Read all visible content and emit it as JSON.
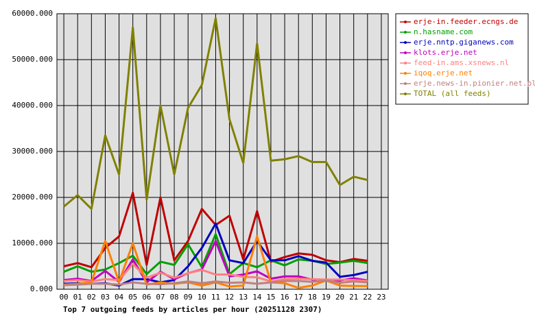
{
  "chart_data": {
    "type": "line",
    "title": "Top 7 outgoing feeds by articles per hour (20251128 2307)",
    "categories": [
      "00",
      "01",
      "02",
      "03",
      "04",
      "05",
      "06",
      "07",
      "08",
      "09",
      "10",
      "11",
      "12",
      "13",
      "14",
      "15",
      "16",
      "17",
      "18",
      "19",
      "20",
      "21",
      "22",
      "23"
    ],
    "ylim": [
      0,
      60000
    ],
    "yticks": [
      {
        "value": 0,
        "label": "0.000"
      },
      {
        "value": 10000,
        "label": "10000.000"
      },
      {
        "value": 20000,
        "label": "20000.000"
      },
      {
        "value": 30000,
        "label": "30000.000"
      },
      {
        "value": 40000,
        "label": "40000.000"
      },
      {
        "value": 50000,
        "label": "50000.000"
      },
      {
        "value": 60000,
        "label": "60000.000"
      }
    ],
    "grid": true,
    "legend": "right",
    "series": [
      {
        "name": "erje-in.feeder.ecngs.de",
        "color": "#c00000",
        "values": [
          5000,
          5700,
          4800,
          9000,
          11500,
          21000,
          5300,
          20000,
          6300,
          10500,
          17500,
          14000,
          16000,
          6500,
          17000,
          6000,
          7000,
          7800,
          7500,
          6300,
          5900,
          6600,
          6200,
          null
        ]
      },
      {
        "name": "n.hasname.com",
        "color": "#00a000",
        "values": [
          3800,
          5000,
          3800,
          4300,
          5700,
          7300,
          3300,
          6000,
          5300,
          9800,
          4800,
          12000,
          3300,
          5700,
          4800,
          6300,
          5200,
          6500,
          6200,
          5500,
          5800,
          6200,
          5700,
          null
        ]
      },
      {
        "name": "erje.nntp.giganews.com",
        "color": "#0000c0",
        "values": [
          1200,
          1300,
          1200,
          1300,
          800,
          2200,
          2200,
          1500,
          2000,
          5000,
          9000,
          14300,
          6300,
          5700,
          10500,
          6300,
          6300,
          7200,
          6200,
          5800,
          2700,
          3100,
          3800,
          null
        ]
      },
      {
        "name": "klots.erje.net",
        "color": "#c000c0",
        "values": [
          2000,
          2300,
          1800,
          4000,
          1600,
          6500,
          1500,
          3800,
          2200,
          3500,
          4300,
          10500,
          2800,
          3200,
          3900,
          2300,
          2800,
          2800,
          2100,
          1900,
          1900,
          2400,
          1900,
          null
        ]
      },
      {
        "name": "feed-in.ams.xsnews.nl",
        "color": "#ff8080",
        "values": [
          1800,
          2000,
          1700,
          2200,
          2000,
          5500,
          2500,
          3600,
          2500,
          3500,
          4200,
          3200,
          3200,
          2700,
          2600,
          1700,
          2200,
          2300,
          2200,
          2100,
          2100,
          2000,
          1800,
          null
        ]
      },
      {
        "name": "iqoq.erje.net",
        "color": "#ff8000",
        "values": [
          1000,
          1200,
          1500,
          10500,
          1600,
          10000,
          1000,
          1500,
          1200,
          1500,
          800,
          1500,
          600,
          800,
          11500,
          1500,
          1300,
          300,
          800,
          1900,
          800,
          700,
          700,
          null
        ]
      },
      {
        "name": "erje.news-in.pionier.net.pl",
        "color": "#c08080",
        "values": [
          900,
          1000,
          1200,
          1200,
          1000,
          1500,
          1200,
          1100,
          1300,
          1700,
          1300,
          1700,
          1400,
          1500,
          1200,
          1500,
          1800,
          1800,
          1600,
          1900,
          1400,
          1700,
          1500,
          null
        ]
      },
      {
        "name": "TOTAL (all feeds)",
        "color": "#808000",
        "values": [
          18000,
          20500,
          17500,
          33500,
          25000,
          57000,
          19500,
          40000,
          25000,
          39500,
          44500,
          59000,
          37000,
          27500,
          53500,
          28000,
          28300,
          29000,
          27700,
          27700,
          22700,
          24500,
          23800,
          null
        ]
      }
    ]
  }
}
